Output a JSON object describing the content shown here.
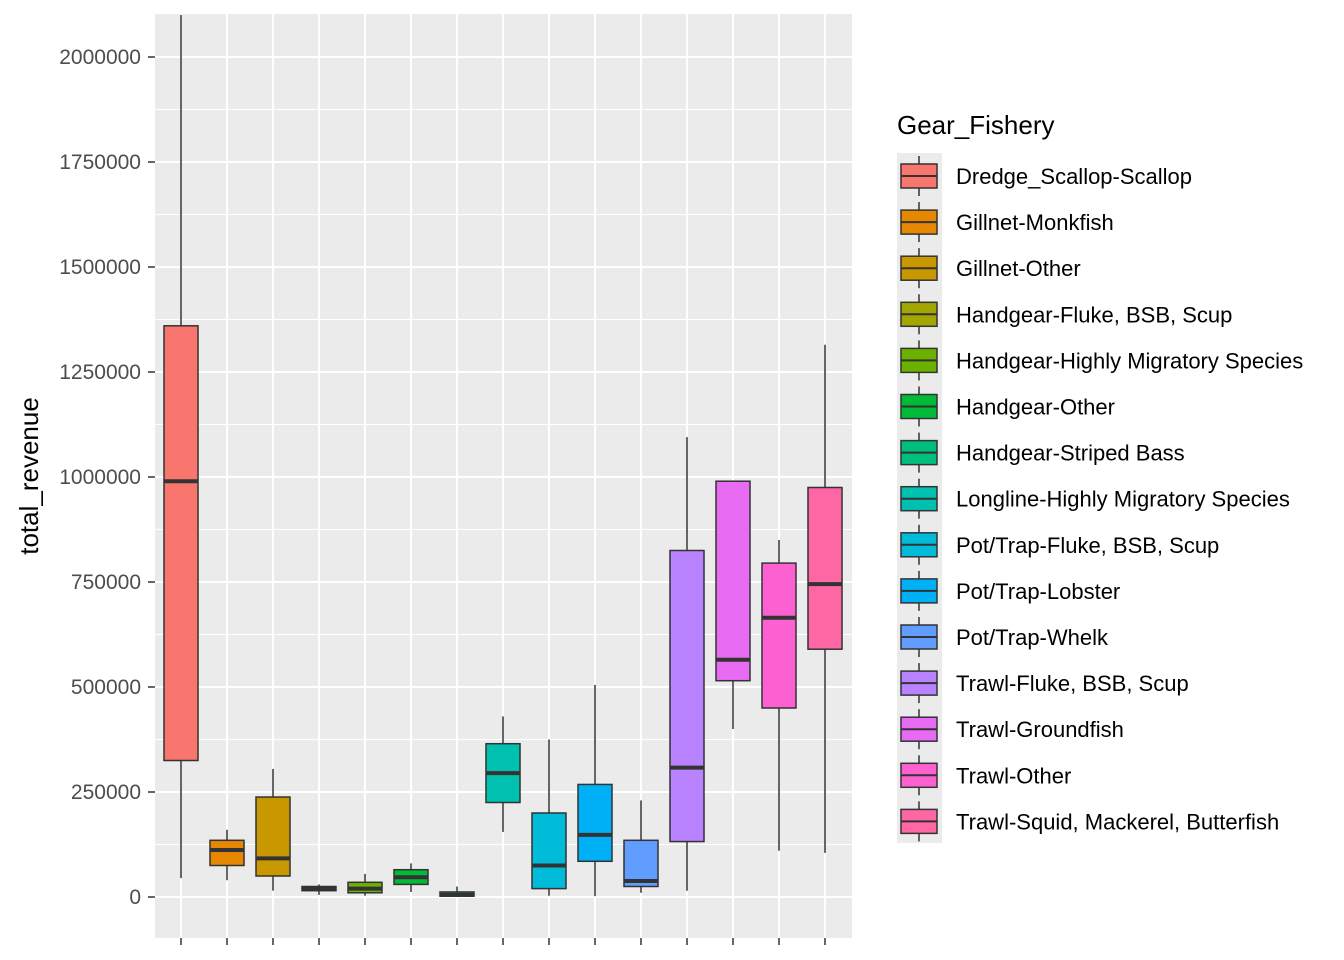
{
  "chart_data": {
    "type": "boxplot",
    "ylabel": "total_revenue",
    "xlabel": "",
    "ylim": [
      -100000,
      2100000
    ],
    "yticks": [
      0,
      250000,
      500000,
      750000,
      1000000,
      1250000,
      1500000,
      1750000,
      2000000
    ],
    "ytick_labels": [
      "0",
      "250000",
      "500000",
      "750000",
      "1000000",
      "1250000",
      "1500000",
      "1750000",
      "2000000"
    ],
    "grid": true,
    "legend_position": "right",
    "legend_title": "Gear_Fishery",
    "series": [
      {
        "name": "Dredge_Scallop-Scallop",
        "color": "#F8766D",
        "box": true,
        "min": 45000,
        "q1": 325000,
        "median": 990000,
        "q3": 1360000,
        "max": 2100000
      },
      {
        "name": "Gillnet-Monkfish",
        "color": "#E58700",
        "box": true,
        "min": 40000,
        "q1": 75000,
        "median": 112000,
        "q3": 135000,
        "max": 160000
      },
      {
        "name": "Gillnet-Other",
        "color": "#C99800",
        "box": true,
        "min": 15000,
        "q1": 50000,
        "median": 92000,
        "q3": 238000,
        "max": 305000
      },
      {
        "name": "Handgear-Fluke, BSB, Scup",
        "color": "#A3A500",
        "box": true,
        "min": 5000,
        "q1": 15000,
        "median": 20000,
        "q3": 25000,
        "max": 30000
      },
      {
        "name": "Handgear-Highly Migratory Species",
        "color": "#6BB100",
        "box": true,
        "min": 3000,
        "q1": 10000,
        "median": 20000,
        "q3": 35000,
        "max": 55000
      },
      {
        "name": "Handgear-Other",
        "color": "#00BA38",
        "box": true,
        "min": 12000,
        "q1": 30000,
        "median": 47000,
        "q3": 65000,
        "max": 80000
      },
      {
        "name": "Handgear-Striped Bass",
        "color": "#00BF7D",
        "box": true,
        "min": 0,
        "q1": 2000,
        "median": 5000,
        "q3": 12000,
        "max": 25000
      },
      {
        "name": "Longline-Highly Migratory Species",
        "color": "#00C0AF",
        "box": true,
        "min": 155000,
        "q1": 225000,
        "median": 295000,
        "q3": 365000,
        "max": 430000
      },
      {
        "name": "Pot/Trap-Fluke, BSB, Scup",
        "color": "#00BCD8",
        "box": true,
        "min": 3000,
        "q1": 20000,
        "median": 75000,
        "q3": 200000,
        "max": 375000
      },
      {
        "name": "Pot/Trap-Lobster",
        "color": "#00B0F6",
        "box": true,
        "min": 2000,
        "q1": 85000,
        "median": 148000,
        "q3": 268000,
        "max": 505000
      },
      {
        "name": "Pot/Trap-Whelk",
        "color": "#619CFF",
        "box": true,
        "min": 10000,
        "q1": 25000,
        "median": 38000,
        "q3": 135000,
        "max": 230000
      },
      {
        "name": "Trawl-Fluke, BSB, Scup",
        "color": "#B983FF",
        "box": true,
        "min": 15000,
        "q1": 132000,
        "median": 308000,
        "q3": 825000,
        "max": 1095000
      },
      {
        "name": "Trawl-Groundfish",
        "color": "#E76BF3",
        "box": true,
        "min": 400000,
        "q1": 515000,
        "median": 565000,
        "q3": 990000,
        "max": 990000
      },
      {
        "name": "Trawl-Other",
        "color": "#FD61D1",
        "box": true,
        "min": 110000,
        "q1": 450000,
        "median": 665000,
        "q3": 795000,
        "max": 850000
      },
      {
        "name": "Trawl-Squid, Mackerel, Butterfish",
        "color": "#FF67A4",
        "box": true,
        "min": 105000,
        "q1": 590000,
        "median": 745000,
        "q3": 975000,
        "max": 1315000
      }
    ]
  }
}
